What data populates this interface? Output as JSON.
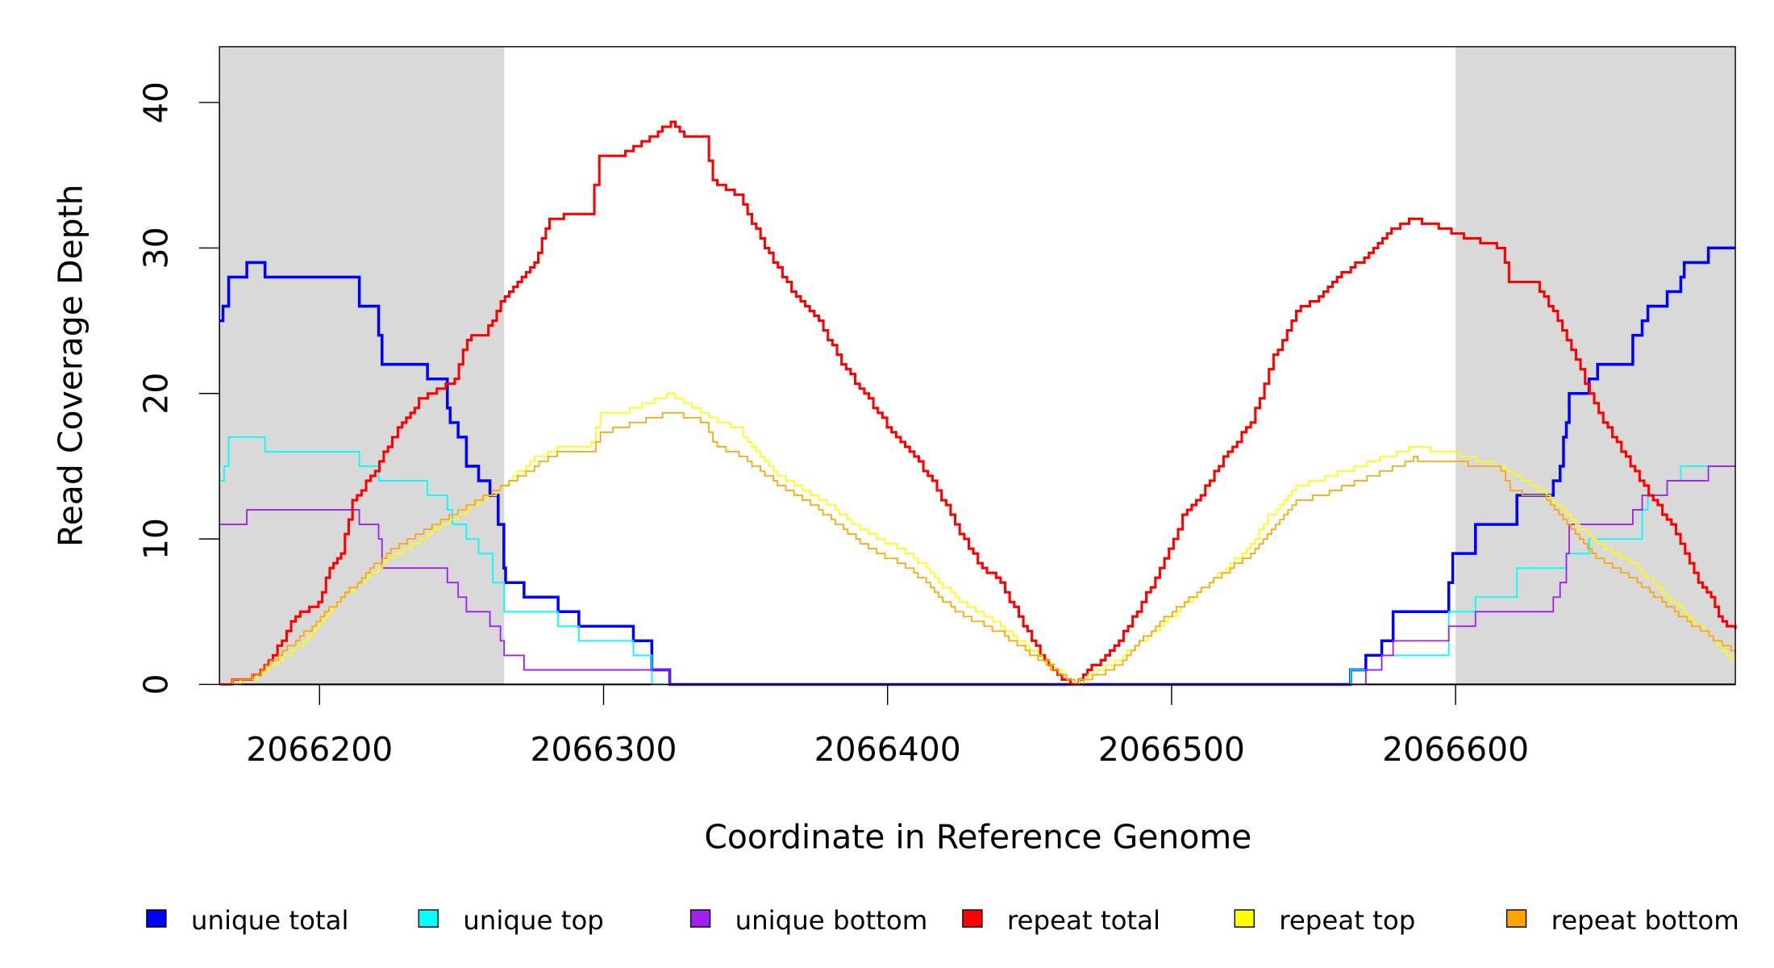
{
  "chart_data": {
    "type": "line",
    "step": true,
    "xlabel": "Coordinate in Reference Genome",
    "ylabel": "Read Coverage Depth",
    "xlim": [
      2066165,
      2066698.5
    ],
    "ylim": [
      0,
      43.5
    ],
    "x_ticks": [
      2066200,
      2066300,
      2066400,
      2066500,
      2066600
    ],
    "x_tick_labels": [
      "2066200",
      "2066300",
      "2066400",
      "2066500",
      "2066600"
    ],
    "y_ticks": [
      0,
      10,
      20,
      30,
      40
    ],
    "y_tick_labels": [
      "0",
      "10",
      "20",
      "30",
      "40"
    ],
    "shaded_regions": [
      [
        2066165,
        2066265
      ],
      [
        2066600,
        2066698.5
      ]
    ],
    "shade_color": "#d9d9d9",
    "legend_position": "bottom",
    "series": [
      {
        "name": "unique total",
        "color": "#0000ff",
        "width": 2.5,
        "smooth": false,
        "points": [
          [
            2066165,
            25
          ],
          [
            2066166,
            26
          ],
          [
            2066168,
            28
          ],
          [
            2066174.4,
            29
          ],
          [
            2066180.8,
            28
          ],
          [
            2066214,
            26
          ],
          [
            2066220.8,
            24
          ],
          [
            2066222,
            22
          ],
          [
            2066238,
            21
          ],
          [
            2066245,
            19
          ],
          [
            2066246,
            18
          ],
          [
            2066248.8,
            17
          ],
          [
            2066251.7,
            15
          ],
          [
            2066256,
            14
          ],
          [
            2066260,
            13
          ],
          [
            2066262.9,
            11
          ],
          [
            2066264.9,
            8
          ],
          [
            2066265.5,
            7
          ],
          [
            2066272,
            6
          ],
          [
            2066284,
            5
          ],
          [
            2066291.3,
            4
          ],
          [
            2066310.5,
            3
          ],
          [
            2066317,
            1
          ],
          [
            2066323.3,
            0
          ],
          [
            2066563,
            1
          ],
          [
            2066568.4,
            2
          ],
          [
            2066574,
            3
          ],
          [
            2066578,
            5
          ],
          [
            2066597.6,
            7
          ],
          [
            2066599,
            9
          ],
          [
            2066607,
            11
          ],
          [
            2066621.6,
            13
          ],
          [
            2066634.4,
            14
          ],
          [
            2066636.8,
            15
          ],
          [
            2066638,
            17
          ],
          [
            2066639,
            18
          ],
          [
            2066640,
            20
          ],
          [
            2066647,
            21
          ],
          [
            2066650,
            22
          ],
          [
            2066662.4,
            24
          ],
          [
            2066665.7,
            25
          ],
          [
            2066667.7,
            26
          ],
          [
            2066674.5,
            27
          ],
          [
            2066679.3,
            28
          ],
          [
            2066680.5,
            29
          ],
          [
            2066689,
            30
          ],
          [
            2066698.5,
            30
          ]
        ]
      },
      {
        "name": "unique top",
        "color": "#00ffff",
        "width": 1.3,
        "smooth": false,
        "points": [
          [
            2066165,
            14
          ],
          [
            2066166.4,
            15
          ],
          [
            2066168,
            17
          ],
          [
            2066180.8,
            16
          ],
          [
            2066214,
            15
          ],
          [
            2066220.8,
            14
          ],
          [
            2066238,
            13
          ],
          [
            2066245,
            12
          ],
          [
            2066246.8,
            11
          ],
          [
            2066251.7,
            10
          ],
          [
            2066256,
            9
          ],
          [
            2066261,
            7
          ],
          [
            2066265,
            5
          ],
          [
            2066284,
            4
          ],
          [
            2066291.3,
            3
          ],
          [
            2066310.5,
            2
          ],
          [
            2066317,
            0
          ],
          [
            2066563,
            1
          ],
          [
            2066574,
            2
          ],
          [
            2066597.6,
            5
          ],
          [
            2066607,
            6
          ],
          [
            2066621.6,
            8
          ],
          [
            2066639,
            9
          ],
          [
            2066647,
            10
          ],
          [
            2066665.7,
            12
          ],
          [
            2066667.7,
            13
          ],
          [
            2066674.5,
            14
          ],
          [
            2066679.3,
            15
          ],
          [
            2066698.5,
            15
          ]
        ]
      },
      {
        "name": "unique bottom",
        "color": "#a020f0",
        "width": 1.3,
        "smooth": false,
        "points": [
          [
            2066165,
            11
          ],
          [
            2066174.4,
            12
          ],
          [
            2066214,
            11
          ],
          [
            2066220.8,
            10
          ],
          [
            2066222,
            8
          ],
          [
            2066245,
            7
          ],
          [
            2066248.8,
            6
          ],
          [
            2066251.7,
            5
          ],
          [
            2066260,
            4
          ],
          [
            2066263.7,
            3
          ],
          [
            2066265,
            2
          ],
          [
            2066272,
            1
          ],
          [
            2066323.3,
            0
          ],
          [
            2066568.4,
            1
          ],
          [
            2066574,
            2
          ],
          [
            2066578,
            3
          ],
          [
            2066597.6,
            4
          ],
          [
            2066607,
            5
          ],
          [
            2066634.4,
            6
          ],
          [
            2066636.8,
            7
          ],
          [
            2066639,
            9
          ],
          [
            2066640,
            11
          ],
          [
            2066662.4,
            12
          ],
          [
            2066665.7,
            13
          ],
          [
            2066674.5,
            14
          ],
          [
            2066689,
            15
          ],
          [
            2066698.5,
            15
          ]
        ]
      },
      {
        "name": "repeat total",
        "color": "#ff0000",
        "width": 2.2,
        "smooth": true,
        "points": [
          [
            2066165,
            0
          ],
          [
            2066176.4,
            0.5
          ],
          [
            2066183.6,
            2
          ],
          [
            2066191.6,
            4.8
          ],
          [
            2066199.6,
            5.5
          ],
          [
            2066203.6,
            8
          ],
          [
            2066207.6,
            9
          ],
          [
            2066211.6,
            12.5
          ],
          [
            2066219.6,
            14.8
          ],
          [
            2066225.6,
            17
          ],
          [
            2066227.6,
            17.5
          ],
          [
            2066235,
            19.5
          ],
          [
            2066247.6,
            21
          ],
          [
            2066252,
            23.8
          ],
          [
            2066258,
            24
          ],
          [
            2066265.3,
            26.8
          ],
          [
            2066275.7,
            29
          ],
          [
            2066281,
            32
          ],
          [
            2066287.7,
            32.3
          ],
          [
            2066295,
            32.2
          ],
          [
            2066298.5,
            36.3
          ],
          [
            2066307.7,
            36.5
          ],
          [
            2066317.7,
            37.8
          ],
          [
            2066323.7,
            38.7
          ],
          [
            2066330,
            37.5
          ],
          [
            2066335.7,
            37.5
          ],
          [
            2066338.5,
            34.5
          ],
          [
            2066347.7,
            33.5
          ],
          [
            2066359.8,
            29
          ],
          [
            2066367.8,
            26.5
          ],
          [
            2066375.8,
            25
          ],
          [
            2066383.8,
            22
          ],
          [
            2066391.8,
            20
          ],
          [
            2066399.8,
            17.8
          ],
          [
            2066407.8,
            16
          ],
          [
            2066415.8,
            14
          ],
          [
            2066423.8,
            11
          ],
          [
            2066431.8,
            8.3
          ],
          [
            2066439.8,
            7
          ],
          [
            2066447.8,
            4
          ],
          [
            2066453.8,
            2
          ],
          [
            2066459.9,
            0.5
          ],
          [
            2066465.9,
            0
          ],
          [
            2066471.9,
            1.2
          ],
          [
            2066479.9,
            2.5
          ],
          [
            2066487.9,
            5
          ],
          [
            2066495.9,
            8
          ],
          [
            2066503.9,
            11.5
          ],
          [
            2066511.9,
            13.5
          ],
          [
            2066519.9,
            16
          ],
          [
            2066527.9,
            18
          ],
          [
            2066535.9,
            22.5
          ],
          [
            2066543.9,
            25.8
          ],
          [
            2066551.9,
            26.5
          ],
          [
            2066559.9,
            28.2
          ],
          [
            2066567.9,
            29.3
          ],
          [
            2066575.9,
            31
          ],
          [
            2066585.2,
            32
          ],
          [
            2066600,
            31
          ],
          [
            2066616,
            30
          ],
          [
            2066618.8,
            27.7
          ],
          [
            2066628,
            27.5
          ],
          [
            2066636,
            25
          ],
          [
            2066644,
            21.5
          ],
          [
            2066652,
            18
          ],
          [
            2066660,
            15.5
          ],
          [
            2066668,
            13
          ],
          [
            2066676,
            11
          ],
          [
            2066684,
            7.5
          ],
          [
            2066690,
            6
          ],
          [
            2066694,
            4.2
          ],
          [
            2066698.5,
            3.8
          ]
        ]
      },
      {
        "name": "repeat top",
        "color": "#ffff00",
        "width": 1.2,
        "smooth": true,
        "points": [
          [
            2066165,
            0
          ],
          [
            2066176.4,
            0.3
          ],
          [
            2066191.6,
            2.5
          ],
          [
            2066207.6,
            6
          ],
          [
            2066223.6,
            8.5
          ],
          [
            2066239.6,
            10.5
          ],
          [
            2066251.7,
            12
          ],
          [
            2066263.7,
            13.5
          ],
          [
            2066275.7,
            15.5
          ],
          [
            2066283.7,
            16.3
          ],
          [
            2066295.7,
            16.5
          ],
          [
            2066298.9,
            18.8
          ],
          [
            2066307.7,
            18.8
          ],
          [
            2066323.7,
            20
          ],
          [
            2066335.7,
            18.5
          ],
          [
            2066347.7,
            17.5
          ],
          [
            2066359.8,
            14.5
          ],
          [
            2066375.8,
            12.8
          ],
          [
            2066391.8,
            10.5
          ],
          [
            2066407.8,
            9
          ],
          [
            2066423.8,
            6
          ],
          [
            2066439.8,
            4
          ],
          [
            2066455.9,
            1.5
          ],
          [
            2066465.9,
            0
          ],
          [
            2066479.9,
            1.5
          ],
          [
            2066495.9,
            4
          ],
          [
            2066511.9,
            6.8
          ],
          [
            2066527.9,
            9.5
          ],
          [
            2066533.9,
            11.5
          ],
          [
            2066543.9,
            13.6
          ],
          [
            2066559.9,
            14.6
          ],
          [
            2066585.2,
            16.3
          ],
          [
            2066600,
            15.9
          ],
          [
            2066616,
            15
          ],
          [
            2066632,
            13
          ],
          [
            2066648,
            10
          ],
          [
            2066664,
            8
          ],
          [
            2066680,
            5
          ],
          [
            2066698.5,
            1.5
          ]
        ]
      },
      {
        "name": "repeat bottom",
        "color": "#ffa500",
        "width": 1.2,
        "smooth": true,
        "points": [
          [
            2066165,
            0
          ],
          [
            2066176.4,
            0.5
          ],
          [
            2066191.6,
            3
          ],
          [
            2066207.6,
            6
          ],
          [
            2066223.6,
            9
          ],
          [
            2066239.6,
            11
          ],
          [
            2066251.7,
            12.3
          ],
          [
            2066263.7,
            13.6
          ],
          [
            2066275.7,
            15
          ],
          [
            2066283.7,
            16
          ],
          [
            2066295.7,
            16
          ],
          [
            2066298.9,
            17.3
          ],
          [
            2066323.7,
            18.7
          ],
          [
            2066335.7,
            18
          ],
          [
            2066338.5,
            16.5
          ],
          [
            2066347.7,
            15.8
          ],
          [
            2066359.8,
            14
          ],
          [
            2066375.8,
            12
          ],
          [
            2066391.8,
            9.5
          ],
          [
            2066407.8,
            8
          ],
          [
            2066423.8,
            5
          ],
          [
            2066439.8,
            3.5
          ],
          [
            2066455.9,
            1.3
          ],
          [
            2066465.9,
            0
          ],
          [
            2066479.9,
            1.2
          ],
          [
            2066495.9,
            4.3
          ],
          [
            2066511.9,
            6.8
          ],
          [
            2066527.9,
            9
          ],
          [
            2066543.9,
            12.5
          ],
          [
            2066559.9,
            13.5
          ],
          [
            2066585.2,
            15.5
          ],
          [
            2066600,
            15.3
          ],
          [
            2066616,
            14.8
          ],
          [
            2066619.2,
            13.3
          ],
          [
            2066632,
            12.8
          ],
          [
            2066648,
            9
          ],
          [
            2066664,
            7
          ],
          [
            2066680,
            4.5
          ],
          [
            2066698.5,
            2.2
          ]
        ]
      }
    ]
  }
}
